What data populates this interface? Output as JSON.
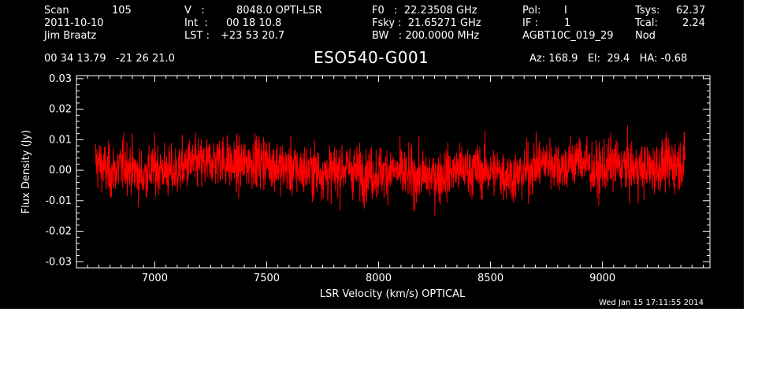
{
  "header": {
    "scan_label": "Scan",
    "scan_value": "105",
    "date": "2011-10-10",
    "observer": "Jim Braatz",
    "v_label": "V   :",
    "v_value": "8048.0 OPTI-LSR",
    "int_label": "Int  :",
    "int_value": "00 18 10.8",
    "lst_label": "LST :",
    "lst_value": "+23 53 20.7",
    "f0": "F0   :  22.23508 GHz",
    "fsky": "Fsky :  21.65271 GHz",
    "bw": "BW   : 200.0000 MHz",
    "pol_label": "Pol:",
    "pol_value": "I",
    "if_label": "IF :",
    "if_value": "1",
    "project": "AGBT10C_019_29",
    "tsys_label": "Tsys:",
    "tsys_value": "62.37",
    "tcal_label": "Tcal:",
    "tcal_value": "2.24",
    "mode": "Nod",
    "ra_dec": "00 34 13.79   -21 26 21.0",
    "source": "ESO540-G001",
    "az_el_ha": "Az: 168.9   El:  29.4   HA: -0.68",
    "timestamp": "Wed Jan 15 17:11:55 2014"
  },
  "colors": {
    "background": "#000000",
    "axes": "#ffffff",
    "trace": "#ff0000"
  },
  "chart_data": {
    "type": "line",
    "title": "ESO540-G001",
    "xlabel": "LSR Velocity (km/s) OPTICAL",
    "ylabel": "Flux Density (Jy)",
    "xlim": [
      6650,
      9480
    ],
    "ylim": [
      -0.032,
      0.031
    ],
    "x_ticks": [
      7000,
      7500,
      8000,
      8500,
      9000
    ],
    "x_tick_labels": [
      "7000",
      "7500",
      "8000",
      "8500",
      "9000"
    ],
    "y_ticks": [
      -0.03,
      -0.02,
      -0.01,
      0.0,
      0.01,
      0.02,
      0.03
    ],
    "y_tick_labels": [
      "-0.03",
      "-0.02",
      "-0.01",
      "0.00",
      "0.01",
      "0.02",
      "0.03"
    ],
    "grid": false,
    "series": [
      {
        "x": [
          6735,
          6800,
          6870,
          6940,
          7010,
          7080,
          7150,
          7220,
          7290,
          7360,
          7430,
          7500,
          7570,
          7640,
          7710,
          7780,
          7850,
          7920,
          7990,
          8060,
          8130,
          8200,
          8270,
          8340,
          8410,
          8480,
          8550,
          8620,
          8690,
          8760,
          8830,
          8900,
          8970,
          9040,
          9110,
          9180,
          9250,
          9320,
          9370
        ],
        "values": [
          0.003,
          -0.001,
          0.002,
          -0.002,
          0.001,
          -0.001,
          0.002,
          0.002,
          0.004,
          0.001,
          0.003,
          0.003,
          0.001,
          0.0,
          0.0,
          -0.001,
          0.001,
          -0.001,
          -0.001,
          0.0,
          -0.002,
          -0.002,
          -0.002,
          0.0,
          0.0,
          0.0,
          -0.001,
          -0.002,
          0.001,
          0.003,
          0.001,
          0.004,
          -0.001,
          0.002,
          0.001,
          0.0,
          0.001,
          0.002,
          0.003
        ],
        "noise_rms": 0.006
      }
    ]
  }
}
